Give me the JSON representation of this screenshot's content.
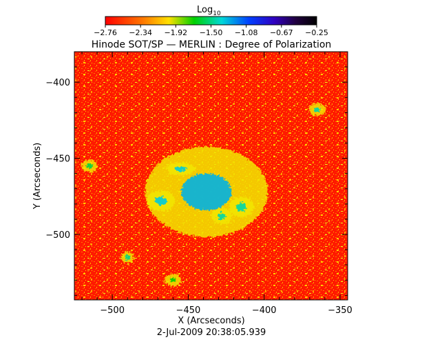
{
  "chart_data": {
    "type": "heatmap",
    "title": "Hinode SOT/SP — MERLIN : Degree of Polarization",
    "colorbar": {
      "label": "Log",
      "label_subscript": "10",
      "ticks": [
        "−2.76",
        "−2.34",
        "−1.92",
        "−1.50",
        "−1.08",
        "−0.67",
        "−0.25"
      ],
      "range": [
        -2.76,
        -0.25
      ],
      "colormap": "rainbow (red → yellow → green → cyan → blue → violet → black)"
    },
    "xlabel": "X (Arcseconds)",
    "ylabel": "Y (Arcseconds)",
    "xlim": [
      -525,
      -345
    ],
    "ylim": [
      -543,
      -380
    ],
    "x_ticks": [
      {
        "value": -500,
        "label": "−500"
      },
      {
        "value": -450,
        "label": "−450"
      },
      {
        "value": -400,
        "label": "−400"
      },
      {
        "value": -350,
        "label": "−350"
      }
    ],
    "y_ticks": [
      {
        "value": -400,
        "label": "−400"
      },
      {
        "value": -450,
        "label": "−450"
      },
      {
        "value": -500,
        "label": "−500"
      }
    ],
    "background_level": -2.7,
    "features": [
      {
        "x": -438,
        "y": -472,
        "rx": 30,
        "ry": 22,
        "level": -1.3
      },
      {
        "x": -468,
        "y": -478,
        "rx": 7,
        "ry": 5,
        "level": -1.35
      },
      {
        "x": -455,
        "y": -457,
        "rx": 7,
        "ry": 3,
        "level": -1.35
      },
      {
        "x": -415,
        "y": -482,
        "rx": 6,
        "ry": 5,
        "level": -1.45
      },
      {
        "x": -428,
        "y": -488,
        "rx": 5,
        "ry": 4,
        "level": -1.45
      },
      {
        "x": -365,
        "y": -418,
        "rx": 4,
        "ry": 3,
        "level": -1.45
      },
      {
        "x": -515,
        "y": -455,
        "rx": 4,
        "ry": 3,
        "level": -1.6
      },
      {
        "x": -490,
        "y": -515,
        "rx": 3,
        "ry": 3,
        "level": -1.5
      },
      {
        "x": -460,
        "y": -530,
        "rx": 4,
        "ry": 3,
        "level": -1.7
      }
    ],
    "footer": "2-Jul-2009 20:38:05.939"
  }
}
